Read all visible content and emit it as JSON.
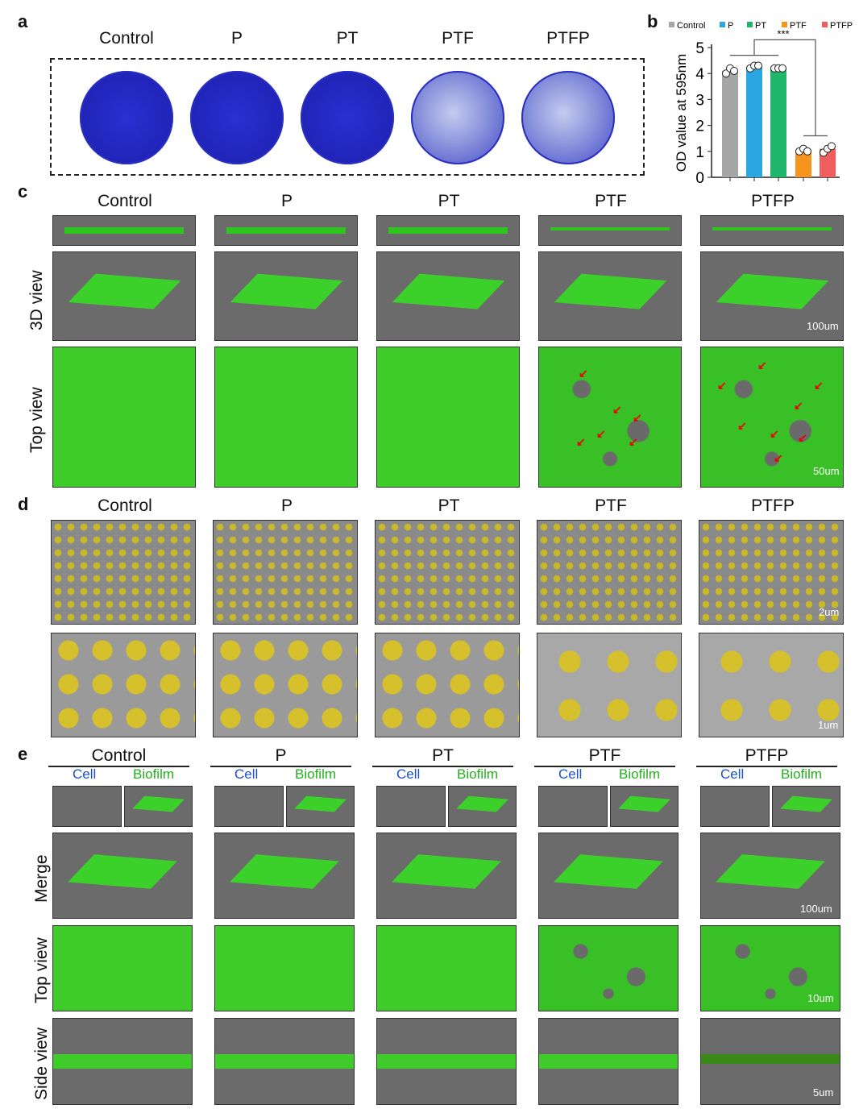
{
  "panel_labels": {
    "a": "a",
    "b": "b",
    "c": "c",
    "d": "d",
    "e": "e"
  },
  "groups": [
    "Control",
    "P",
    "PT",
    "PTF",
    "PTFP"
  ],
  "row_labels": {
    "c_3d": "3D view",
    "c_top": "Top view",
    "e_merge": "Merge",
    "e_top": "Top view",
    "e_side": "Side view"
  },
  "sub_labels": {
    "cell": "Cell",
    "biofilm": "Biofilm"
  },
  "scale_bars": {
    "c_3d": "100um",
    "c_top": "50um",
    "d_low": "2um",
    "d_high": "1um",
    "e_merge": "100um",
    "e_top": "10um",
    "e_side": "5um"
  },
  "colors": {
    "Control": "#a6a6a6",
    "P": "#2aa7e0",
    "PT": "#1fb56b",
    "PTF": "#f7941d",
    "PTFP": "#ef5d5d",
    "cell_label": "#1a4fd0",
    "biofilm_label": "#22b21a"
  },
  "chart_data": {
    "type": "bar",
    "categories": [
      "Control",
      "P",
      "PT",
      "PTF",
      "PTFP"
    ],
    "values": [
      4.1,
      4.25,
      4.2,
      1.0,
      1.1
    ],
    "points": [
      [
        4.0,
        4.2,
        4.1
      ],
      [
        4.2,
        4.3,
        4.3
      ],
      [
        4.2,
        4.2,
        4.2
      ],
      [
        1.0,
        1.1,
        1.0
      ],
      [
        0.95,
        1.1,
        1.2
      ]
    ],
    "ylabel": "OD value at 595nm",
    "ylim": [
      0,
      5
    ],
    "yticks": [
      "0",
      "1",
      "2",
      "3",
      "4",
      "5"
    ],
    "legend": [
      "Control",
      "P",
      "PT",
      "PTF",
      "PTFP"
    ],
    "legend_position": "top",
    "annotation": "***"
  }
}
